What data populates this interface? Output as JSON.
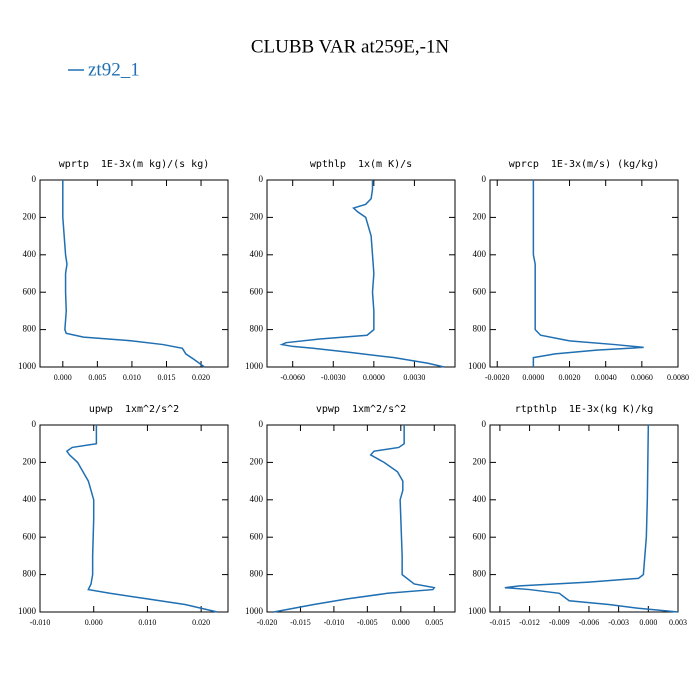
{
  "title": "CLUBB VAR at259E,-1N",
  "chart_data": [
    {
      "type": "line",
      "title": "wprtp  1E-3x(m kg)/(s kg)",
      "y_inverted": true,
      "grid": false,
      "y": [
        0,
        100,
        200,
        300,
        400,
        450,
        500,
        600,
        700,
        800,
        820,
        840,
        860,
        880,
        900,
        930,
        960,
        1000
      ],
      "series": [
        {
          "name": "zt92_1",
          "color": "#1f6fb2",
          "values": [
            0,
            0,
            0,
            0.0002,
            0.0004,
            0.0006,
            0.0004,
            0.0004,
            0.0005,
            0.0003,
            0.0005,
            0.003,
            0.01,
            0.0145,
            0.0173,
            0.0178,
            0.019,
            0.0205
          ]
        }
      ],
      "xlim": [
        -0.0033,
        0.0239
      ],
      "ylim": [
        0,
        1000
      ],
      "xticks": [
        {
          "value": 0,
          "label": "0.000"
        },
        0.005,
        {
          "value": 0.01,
          "label": "0.010"
        },
        0.015,
        {
          "value": 0.02,
          "label": "0.020"
        }
      ],
      "yticks": [
        0,
        200,
        400,
        600,
        800,
        1000
      ]
    },
    {
      "type": "line",
      "title": "wpthlp  1x(m K)/s",
      "y_inverted": true,
      "grid": false,
      "y": [
        0,
        50,
        100,
        130,
        150,
        170,
        200,
        300,
        400,
        500,
        600,
        700,
        800,
        830,
        850,
        870,
        880,
        890,
        900,
        920,
        950,
        980,
        1000
      ],
      "series": [
        {
          "name": "zt92_1",
          "color": "#1f6fb2",
          "values": [
            -0.0001,
            -0.0001,
            -0.0002,
            -0.0006,
            -0.0015,
            -0.0012,
            -0.0006,
            -0.0002,
            -0.0001,
            0,
            -0.0001,
            0,
            0,
            -0.0005,
            -0.004,
            -0.0065,
            -0.0068,
            -0.006,
            -0.0045,
            -0.002,
            0.0015,
            0.004,
            0.0052
          ]
        }
      ],
      "xlim": [
        -0.0079,
        0.006
      ],
      "ylim": [
        0,
        1000
      ],
      "xticks": [
        {
          "value": -0.006,
          "label": "-0.0060"
        },
        {
          "value": -0.003,
          "label": "-0.0030"
        },
        {
          "value": 0,
          "label": "0.0000"
        },
        {
          "value": 0.003,
          "label": "0.0030"
        }
      ],
      "yticks": [
        0,
        200,
        400,
        600,
        800,
        1000
      ]
    },
    {
      "type": "line",
      "title": "wprcp  1E-3x(m/s) (kg/kg)",
      "y_inverted": true,
      "grid": false,
      "y": [
        0,
        200,
        400,
        450,
        600,
        800,
        830,
        860,
        880,
        895,
        910,
        930,
        950,
        1000
      ],
      "series": [
        {
          "name": "zt92_1",
          "color": "#1f6fb2",
          "values": [
            0,
            0,
            0,
            0.0001,
            0.0001,
            0.0001,
            0.0004,
            0.002,
            0.0045,
            0.0061,
            0.0035,
            0.0012,
            0,
            0
          ]
        }
      ],
      "xlim": [
        -0.0024,
        0.008
      ],
      "ylim": [
        0,
        1000
      ],
      "xticks": [
        {
          "value": -0.002,
          "label": "-0.0020"
        },
        {
          "value": 0,
          "label": "0.0000"
        },
        {
          "value": 0.002,
          "label": "0.0020"
        },
        {
          "value": 0.004,
          "label": "0.0040"
        },
        {
          "value": 0.006,
          "label": "0.0060"
        },
        {
          "value": 0.008,
          "label": "0.0080"
        }
      ],
      "yticks": [
        0,
        200,
        400,
        600,
        800,
        1000
      ]
    },
    {
      "type": "line",
      "title": "upwp  1xm^2/s^2",
      "y_inverted": true,
      "grid": false,
      "y": [
        0,
        100,
        120,
        140,
        160,
        200,
        250,
        300,
        400,
        500,
        700,
        800,
        850,
        880,
        900,
        930,
        960,
        1000
      ],
      "series": [
        {
          "name": "zt92_1",
          "color": "#1f6fb2",
          "values": [
            0.0005,
            0.0005,
            -0.004,
            -0.005,
            -0.0045,
            -0.003,
            -0.002,
            -0.001,
            0,
            0,
            -0.0002,
            -0.0002,
            -0.0005,
            -0.001,
            0.003,
            0.01,
            0.017,
            0.023
          ]
        }
      ],
      "xlim": [
        -0.01,
        0.025
      ],
      "ylim": [
        0,
        1000
      ],
      "xticks": [
        {
          "value": -0.01,
          "label": "-0.010"
        },
        {
          "value": 0,
          "label": "0.000"
        },
        {
          "value": 0.01,
          "label": "0.010"
        },
        {
          "value": 0.02,
          "label": "0.020"
        }
      ],
      "yticks": [
        0,
        200,
        400,
        600,
        800,
        1000
      ]
    },
    {
      "type": "line",
      "title": "vpwp  1xm^2/s^2",
      "y_inverted": true,
      "grid": false,
      "y": [
        0,
        100,
        120,
        140,
        160,
        200,
        250,
        300,
        350,
        400,
        500,
        700,
        800,
        850,
        870,
        880,
        900,
        930,
        960,
        1000
      ],
      "series": [
        {
          "name": "zt92_1",
          "color": "#1f6fb2",
          "values": [
            0.0005,
            0.0005,
            -0.0003,
            -0.004,
            -0.0045,
            -0.0025,
            -0.0005,
            0.0003,
            0.0003,
            -0.0001,
            0,
            0.0002,
            0.0002,
            0.002,
            0.005,
            0.0048,
            -0.002,
            -0.008,
            -0.013,
            -0.019
          ]
        }
      ],
      "xlim": [
        -0.02,
        0.0081
      ],
      "ylim": [
        0,
        1000
      ],
      "xticks": [
        {
          "value": -0.02,
          "label": "-0.020"
        },
        -0.015,
        {
          "value": -0.01,
          "label": "-0.010"
        },
        -0.005,
        {
          "value": 0,
          "label": "0.000"
        },
        0.005
      ],
      "yticks": [
        0,
        200,
        400,
        600,
        800,
        1000
      ]
    },
    {
      "type": "line",
      "title": "rtpthlp  1E-3x(kg K)/kg",
      "y_inverted": true,
      "grid": false,
      "y": [
        0,
        400,
        600,
        800,
        820,
        840,
        860,
        870,
        880,
        900,
        940,
        960,
        980,
        1000
      ],
      "series": [
        {
          "name": "zt92_1",
          "color": "#1f6fb2",
          "values": [
            0,
            -0.0001,
            -0.0002,
            -0.0005,
            -0.001,
            -0.006,
            -0.013,
            -0.0145,
            -0.012,
            -0.009,
            -0.008,
            -0.004,
            -0.001,
            0.003
          ]
        }
      ],
      "xlim": [
        -0.016,
        0.003
      ],
      "ylim": [
        0,
        1000
      ],
      "xticks": [
        -0.015,
        -0.012,
        -0.009,
        -0.006,
        -0.003,
        {
          "value": 0,
          "label": "0.000"
        },
        0.003
      ],
      "yticks": [
        0,
        200,
        400,
        600,
        800,
        1000
      ]
    }
  ]
}
